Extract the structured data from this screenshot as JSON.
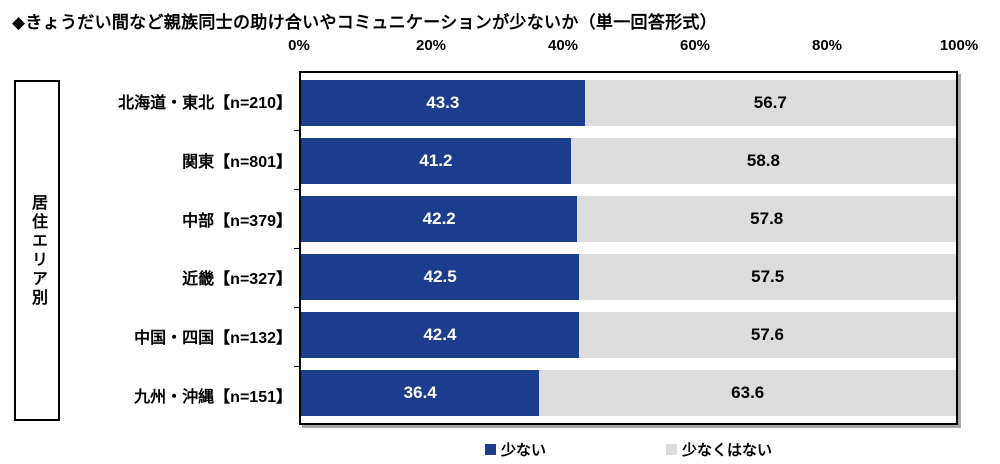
{
  "title": "◆きょうだい間など親族同士の助け合いやコミュニケーションが少ないか（単一回答形式）",
  "side_label": "居住エリア別",
  "axis": {
    "ticks": [
      "0%",
      "20%",
      "40%",
      "60%",
      "80%",
      "100%"
    ]
  },
  "legend": [
    {
      "label": "少ない",
      "color": "#1c3d8e"
    },
    {
      "label": "少なくはない",
      "color": "#dcdcdc"
    }
  ],
  "colors": {
    "bar_primary": "#1c3d8e",
    "bar_secondary": "#dcdcdc",
    "label_on_primary": "#ffffff",
    "label_on_secondary": "#000000"
  },
  "chart_data": {
    "type": "bar",
    "orientation": "horizontal",
    "stacked": true,
    "title": "◆きょうだい間など親族同士の助け合いやコミュニケーションが少ないか（単一回答形式）",
    "group_label": "居住エリア別",
    "categories": [
      "北海道・東北【n=210】",
      "関東【n=801】",
      "中部【n=379】",
      "近畿【n=327】",
      "中国・四国【n=132】",
      "九州・沖縄【n=151】"
    ],
    "series": [
      {
        "name": "少ない",
        "color": "#1c3d8e",
        "values": [
          43.3,
          41.2,
          42.2,
          42.5,
          42.4,
          36.4
        ]
      },
      {
        "name": "少なくはない",
        "color": "#dcdcdc",
        "values": [
          56.7,
          58.8,
          57.8,
          57.5,
          57.6,
          63.6
        ]
      }
    ],
    "xlim": [
      0,
      100
    ],
    "x_tick_labels": [
      "0%",
      "20%",
      "40%",
      "60%",
      "80%",
      "100%"
    ],
    "grid": false,
    "legend_position": "bottom",
    "value_labels": true
  }
}
